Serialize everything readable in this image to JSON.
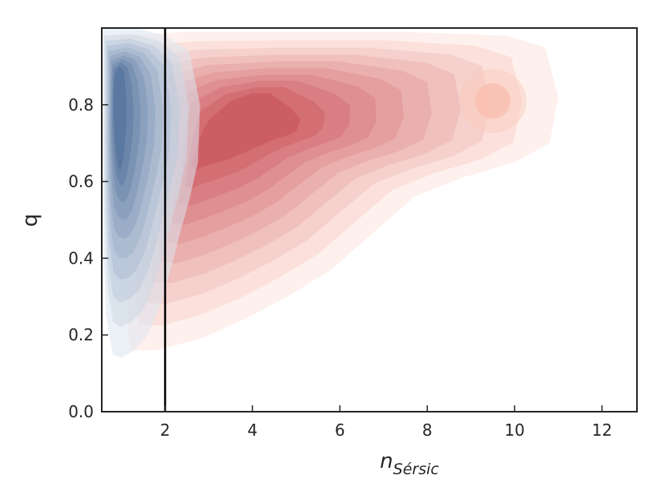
{
  "chart_data": {
    "type": "kde_contour",
    "title": "",
    "xlabel": "n",
    "xlabel_subscript": "Sérsic",
    "ylabel": "q",
    "xlim": [
      0.55,
      12.8
    ],
    "ylim": [
      0.0,
      1.0
    ],
    "xticks": [
      2,
      4,
      6,
      8,
      10,
      12
    ],
    "yticks": [
      0.0,
      0.2,
      0.4,
      0.6,
      0.8
    ],
    "xtick_labels": [
      "2",
      "4",
      "6",
      "8",
      "10",
      "12"
    ],
    "ytick_labels": [
      "0.0",
      "0.2",
      "0.4",
      "0.6",
      "0.8"
    ],
    "vertical_line_x": 2,
    "grid": false,
    "series": [
      {
        "colormap": "Reds",
        "color": "#e05a5a",
        "levels": 10,
        "density_peak": {
          "x": 4.2,
          "y": 0.75
        },
        "secondary_peak": {
          "x": 9.5,
          "y": 0.81
        },
        "outer_extent": {
          "xmin": 1.1,
          "xmax": 11.0,
          "ymin": 0.15,
          "ymax": 0.99
        }
      },
      {
        "colormap": "Blues",
        "color": "#5878a8",
        "levels": 10,
        "density_peak": {
          "x": 0.95,
          "y": 0.82
        },
        "outer_extent": {
          "xmin": 0.55,
          "xmax": 2.8,
          "ymin": 0.14,
          "ymax": 1.0
        }
      }
    ]
  }
}
